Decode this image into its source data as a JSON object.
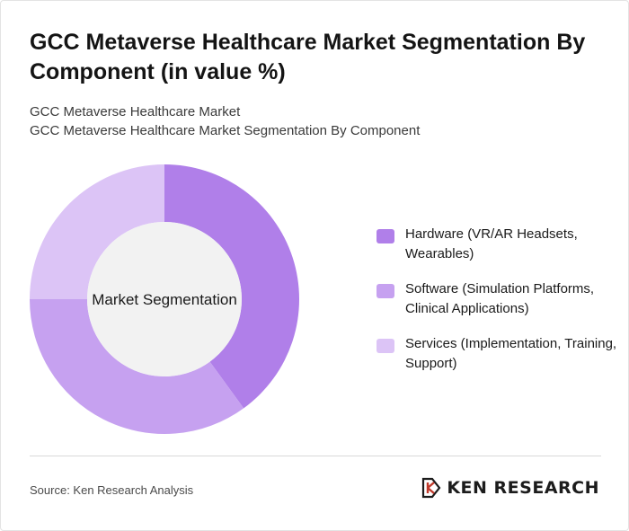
{
  "header": {
    "title": "GCC Metaverse Healthcare Market Segmentation By Component (in value %)",
    "subtitle_line1": "GCC Metaverse Healthcare Market",
    "subtitle_line2": "GCC Metaverse Healthcare Market Segmentation By Component"
  },
  "chart_data": {
    "type": "pie",
    "variant": "donut",
    "center_label": "Market Segmentation",
    "categories": [
      "Hardware (VR/AR Headsets, Wearables)",
      "Software (Simulation Platforms, Clinical Applications)",
      "Services (Implementation, Training, Support)"
    ],
    "values": [
      40,
      35,
      25
    ],
    "colors": [
      "#b07fe9",
      "#c6a1f0",
      "#dcc4f6"
    ],
    "legend_position": "right",
    "start_angle": "12 o'clock, clockwise"
  },
  "footer": {
    "source": "Source: Ken Research Analysis",
    "brand": "KEN RESEARCH",
    "brand_icon": "ken-research-logo-icon"
  }
}
